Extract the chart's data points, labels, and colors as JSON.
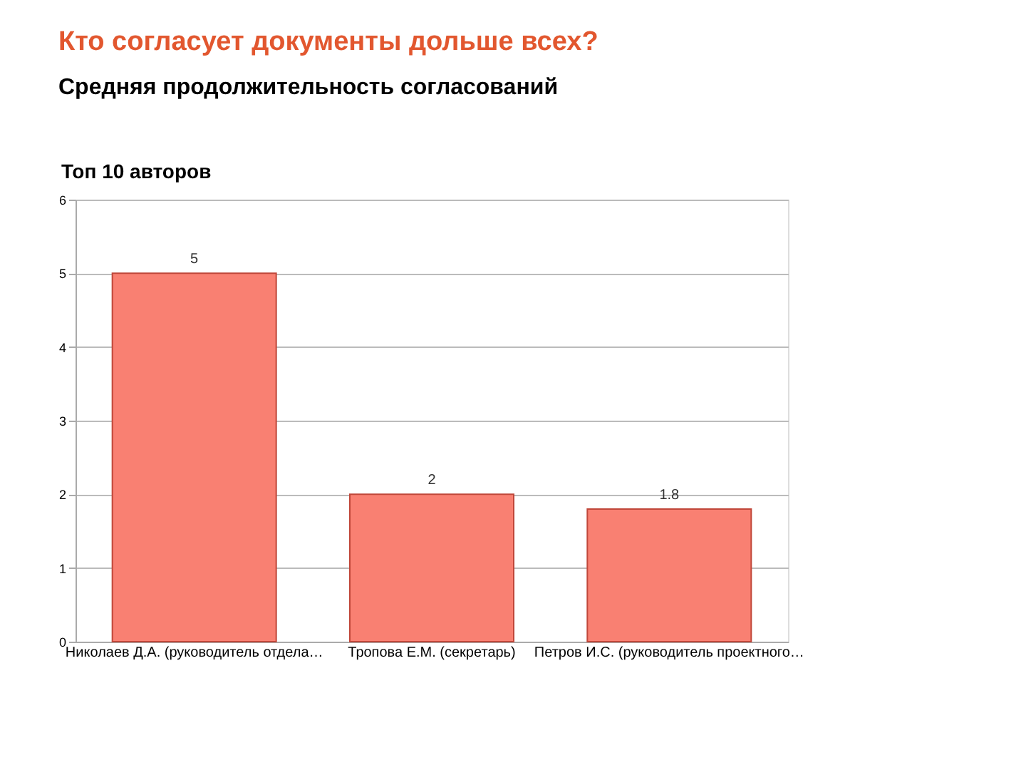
{
  "chart_data": {
    "type": "bar",
    "title": "Кто согласует документы дольше всех?",
    "subtitle": "Средняя продолжительность согласований",
    "annotations": [
      "Топ 10 авторов"
    ],
    "categories": [
      "Николаев Д.А. (руководитель отдела…",
      "Тропова Е.М. (секретарь)",
      "Петров И.С. (руководитель проектного…"
    ],
    "values": [
      5,
      2,
      1.8
    ],
    "color": "#f98072",
    "ylim": [
      0,
      6
    ],
    "yticks": [
      0,
      1,
      2,
      3,
      4,
      5,
      6
    ],
    "grid": "y",
    "data_labels": true
  }
}
